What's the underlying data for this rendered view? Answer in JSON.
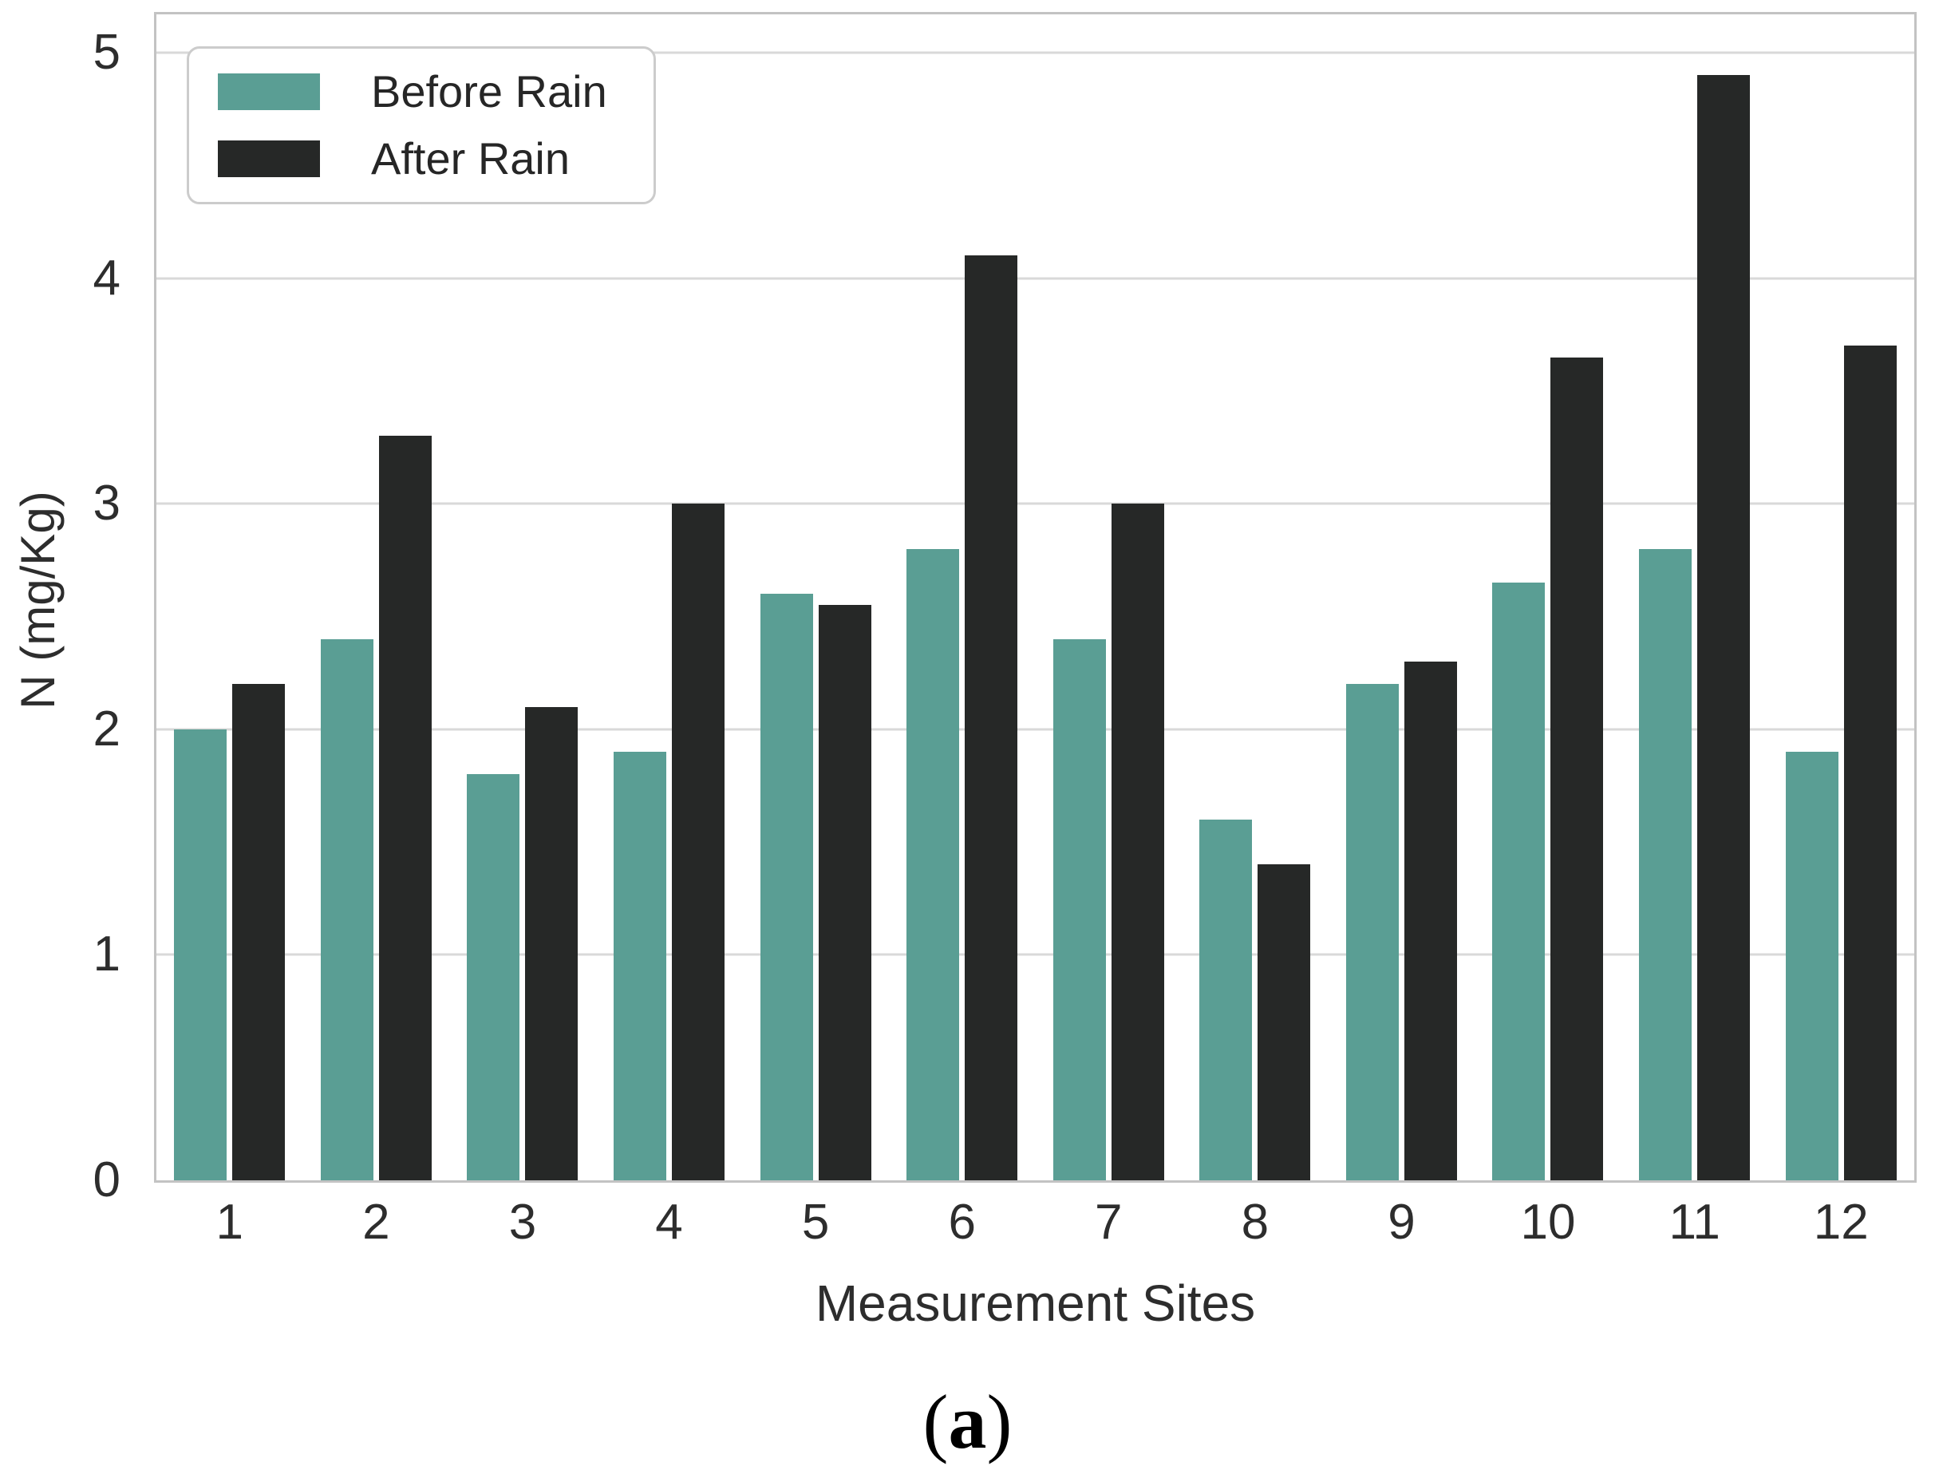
{
  "style": {
    "teal": "#5a9e94",
    "dark": "#262827",
    "grid": "#d9d9d9",
    "spine": "#c3c3c3",
    "text": "#2d2d2d",
    "legend_border": "#cccccc"
  },
  "chart_data": {
    "type": "bar",
    "title": "",
    "xlabel": "Measurement Sites",
    "ylabel": "N (mg/Kg)",
    "categories": [
      "1",
      "2",
      "3",
      "4",
      "5",
      "6",
      "7",
      "8",
      "9",
      "10",
      "11",
      "12"
    ],
    "series": [
      {
        "name": "Before Rain",
        "color": "#5a9e94",
        "values": [
          2.0,
          2.4,
          1.8,
          1.9,
          2.6,
          2.8,
          2.4,
          1.6,
          2.2,
          2.65,
          2.8,
          1.9
        ]
      },
      {
        "name": "After Rain",
        "color": "#262827",
        "values": [
          2.2,
          3.3,
          2.1,
          3.0,
          2.55,
          4.1,
          3.0,
          1.4,
          2.3,
          3.65,
          4.9,
          3.7
        ]
      }
    ],
    "ylim": [
      0,
      5.17
    ],
    "yticks": [
      0,
      1,
      2,
      3,
      4,
      5
    ],
    "grid": true,
    "legend_position": "upper left"
  },
  "caption": {
    "prefix": "(",
    "label": "a",
    "suffix": ")"
  }
}
